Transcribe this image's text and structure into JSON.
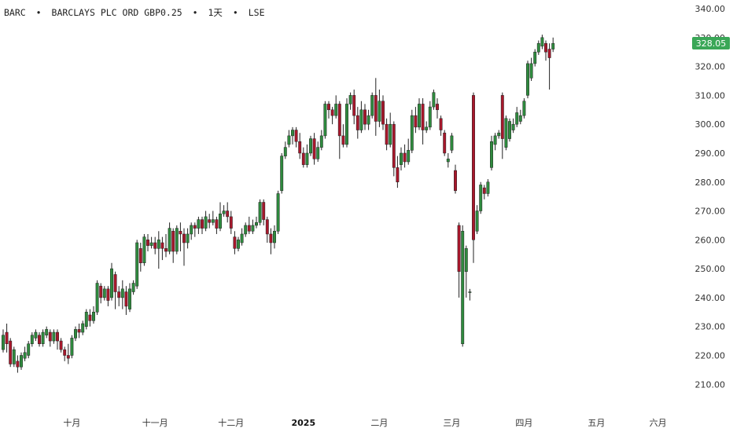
{
  "header": {
    "symbol": "BARC",
    "name": "BARCLAYS PLC ORD GBP0.25",
    "interval": "1天",
    "exchange": "LSE",
    "separator": "•"
  },
  "colors": {
    "up": "#2e8b3e",
    "down": "#a8172b",
    "wick": "#222222",
    "price_label_bg": "#3aa757",
    "axis_text": "#333333"
  },
  "chart_data": {
    "type": "candlestick",
    "y_axis_position": "right",
    "ylim": [
      203,
      343
    ],
    "yticks": [
      210,
      220,
      230,
      240,
      250,
      260,
      270,
      280,
      290,
      300,
      310,
      320,
      330,
      340
    ],
    "ytick_labels": [
      "210.00",
      "220.00",
      "230.00",
      "240.00",
      "250.00",
      "260.00",
      "270.00",
      "280.00",
      "290.00",
      "300.00",
      "310.00",
      "320.00",
      "330.00",
      "340.00"
    ],
    "xticks": [
      {
        "label": "十月",
        "index": 19,
        "bold": false
      },
      {
        "label": "十一月",
        "index": 42,
        "bold": false
      },
      {
        "label": "十二月",
        "index": 63,
        "bold": false
      },
      {
        "label": "2025",
        "index": 83,
        "bold": true
      },
      {
        "label": "二月",
        "index": 104,
        "bold": false
      },
      {
        "label": "三月",
        "index": 124,
        "bold": false
      },
      {
        "label": "四月",
        "index": 144,
        "bold": false
      },
      {
        "label": "五月",
        "index": 164,
        "bold": false
      },
      {
        "label": "六月",
        "index": 181,
        "bold": false
      }
    ],
    "last_price": "328.05",
    "last_price_value": 328.05,
    "candles": [
      [
        222,
        227,
        221,
        229
      ],
      [
        228,
        224,
        221,
        231
      ],
      [
        225,
        217,
        216,
        226
      ],
      [
        217,
        222,
        216,
        223
      ],
      [
        218,
        216,
        214,
        220
      ],
      [
        216,
        220,
        215,
        221
      ],
      [
        219,
        221,
        218,
        223
      ],
      [
        220,
        224,
        219,
        225
      ],
      [
        224,
        227,
        223,
        228
      ],
      [
        226,
        228,
        225,
        229
      ],
      [
        227,
        224,
        223,
        228
      ],
      [
        224,
        228,
        223,
        229
      ],
      [
        227,
        229,
        226,
        230
      ],
      [
        228,
        225,
        223,
        229
      ],
      [
        225,
        228,
        224,
        229
      ],
      [
        228,
        225,
        222,
        229
      ],
      [
        225,
        222,
        221,
        226
      ],
      [
        222,
        220,
        218,
        223
      ],
      [
        220,
        219,
        217,
        224
      ],
      [
        220,
        226,
        219,
        227
      ],
      [
        226,
        229,
        225,
        230
      ],
      [
        229,
        228,
        226,
        231
      ],
      [
        228,
        231,
        227,
        232
      ],
      [
        230,
        235,
        229,
        236
      ],
      [
        234,
        232,
        230,
        236
      ],
      [
        232,
        235,
        231,
        237
      ],
      [
        235,
        245,
        234,
        246
      ],
      [
        244,
        240,
        238,
        245
      ],
      [
        240,
        243,
        239,
        244
      ],
      [
        243,
        239,
        237,
        244
      ],
      [
        240,
        250,
        239,
        252
      ],
      [
        248,
        242,
        236,
        249
      ],
      [
        242,
        240,
        237,
        244
      ],
      [
        240,
        243,
        236,
        246
      ],
      [
        242,
        237,
        234,
        244
      ],
      [
        236,
        243,
        235,
        245
      ],
      [
        242,
        245,
        241,
        246
      ],
      [
        244,
        259,
        243,
        260
      ],
      [
        257,
        252,
        249,
        259
      ],
      [
        252,
        261,
        251,
        262
      ],
      [
        260,
        258,
        256,
        262
      ],
      [
        258,
        259,
        257,
        261
      ],
      [
        259,
        257,
        255,
        261
      ],
      [
        257,
        260,
        250,
        263
      ],
      [
        259,
        257,
        253,
        261
      ],
      [
        257,
        256,
        254,
        262
      ],
      [
        256,
        264,
        255,
        266
      ],
      [
        263,
        256,
        252,
        264
      ],
      [
        256,
        264,
        255,
        265
      ],
      [
        263,
        262,
        256,
        266
      ],
      [
        262,
        259,
        251,
        264
      ],
      [
        259,
        262,
        257,
        264
      ],
      [
        262,
        265,
        260,
        266
      ],
      [
        265,
        264,
        261,
        266
      ],
      [
        264,
        267,
        262,
        268
      ],
      [
        267,
        264,
        262,
        268
      ],
      [
        264,
        268,
        263,
        270
      ],
      [
        267,
        266,
        264,
        269
      ],
      [
        266,
        267,
        265,
        270
      ],
      [
        267,
        264,
        262,
        268
      ],
      [
        264,
        269,
        263,
        273
      ],
      [
        269,
        270,
        268,
        272
      ],
      [
        270,
        268,
        266,
        273
      ],
      [
        268,
        264,
        262,
        270
      ],
      [
        261,
        257,
        255,
        263
      ],
      [
        257,
        260,
        256,
        261
      ],
      [
        259,
        262,
        258,
        264
      ],
      [
        262,
        265,
        261,
        266
      ],
      [
        265,
        263,
        262,
        268
      ],
      [
        263,
        265,
        262,
        267
      ],
      [
        265,
        266,
        264,
        268
      ],
      [
        266,
        273,
        265,
        274
      ],
      [
        273,
        267,
        265,
        274
      ],
      [
        267,
        262,
        259,
        268
      ],
      [
        262,
        259,
        255,
        264
      ],
      [
        259,
        263,
        257,
        265
      ],
      [
        263,
        276,
        262,
        277
      ],
      [
        277,
        289,
        276,
        290
      ],
      [
        289,
        292,
        288,
        294
      ],
      [
        293,
        296,
        292,
        298
      ],
      [
        296,
        298,
        293,
        299
      ],
      [
        298,
        294,
        292,
        299
      ],
      [
        294,
        290,
        288,
        297
      ],
      [
        290,
        286,
        285,
        292
      ],
      [
        286,
        290,
        285,
        293
      ],
      [
        290,
        295,
        289,
        296
      ],
      [
        295,
        288,
        286,
        297
      ],
      [
        288,
        292,
        287,
        294
      ],
      [
        292,
        296,
        291,
        298
      ],
      [
        296,
        307,
        295,
        308
      ],
      [
        307,
        305,
        302,
        308
      ],
      [
        305,
        303,
        300,
        306
      ],
      [
        303,
        307,
        302,
        310
      ],
      [
        307,
        296,
        288,
        308
      ],
      [
        296,
        293,
        292,
        300
      ],
      [
        293,
        307,
        292,
        309
      ],
      [
        307,
        310,
        305,
        311
      ],
      [
        310,
        303,
        300,
        312
      ],
      [
        303,
        298,
        295,
        306
      ],
      [
        298,
        305,
        297,
        308
      ],
      [
        305,
        300,
        298,
        307
      ],
      [
        300,
        303,
        298,
        305
      ],
      [
        303,
        310,
        302,
        311
      ],
      [
        310,
        301,
        296,
        316
      ],
      [
        301,
        308,
        299,
        312
      ],
      [
        308,
        300,
        298,
        310
      ],
      [
        300,
        293,
        291,
        302
      ],
      [
        293,
        300,
        292,
        304
      ],
      [
        300,
        285,
        282,
        301
      ],
      [
        285,
        280,
        278,
        289
      ],
      [
        286,
        290,
        284,
        292
      ],
      [
        290,
        287,
        285,
        293
      ],
      [
        287,
        291,
        286,
        295
      ],
      [
        291,
        303,
        290,
        305
      ],
      [
        303,
        299,
        297,
        306
      ],
      [
        299,
        307,
        298,
        309
      ],
      [
        307,
        298,
        293,
        309
      ],
      [
        298,
        299,
        297,
        301
      ],
      [
        299,
        306,
        298,
        308
      ],
      [
        306,
        311,
        305,
        312
      ],
      [
        307,
        305,
        302,
        309
      ],
      [
        302,
        298,
        296,
        303
      ],
      [
        297,
        290,
        289,
        298
      ],
      [
        287,
        288,
        285,
        290
      ],
      [
        291,
        296,
        290,
        297
      ],
      [
        284,
        277,
        276,
        286
      ],
      [
        265,
        249,
        240,
        266
      ],
      [
        224,
        263,
        223,
        265
      ],
      [
        249,
        257,
        240,
        258
      ],
      [
        242,
        242,
        239,
        243
      ],
      [
        310,
        260,
        252,
        311
      ],
      [
        263,
        270,
        262,
        272
      ],
      [
        270,
        279,
        269,
        280
      ],
      [
        278,
        276,
        274,
        279
      ],
      [
        276,
        280,
        275,
        281
      ],
      [
        285,
        294,
        284,
        296
      ],
      [
        293,
        296,
        291,
        297
      ],
      [
        296,
        297,
        295,
        298
      ],
      [
        310,
        295,
        288,
        311
      ],
      [
        292,
        302,
        291,
        303
      ],
      [
        295,
        301,
        294,
        302
      ],
      [
        298,
        300,
        297,
        302
      ],
      [
        300,
        304,
        299,
        306
      ],
      [
        301,
        303,
        300,
        305
      ],
      [
        303,
        308,
        302,
        309
      ],
      [
        310,
        321,
        309,
        322
      ],
      [
        316,
        321,
        315,
        323
      ],
      [
        321,
        325,
        320,
        326
      ],
      [
        325,
        328,
        324,
        329
      ],
      [
        327,
        330,
        326,
        331
      ],
      [
        328,
        325,
        322,
        329
      ],
      [
        326,
        323,
        312,
        328
      ],
      [
        326,
        328,
        325,
        330
      ]
    ]
  }
}
